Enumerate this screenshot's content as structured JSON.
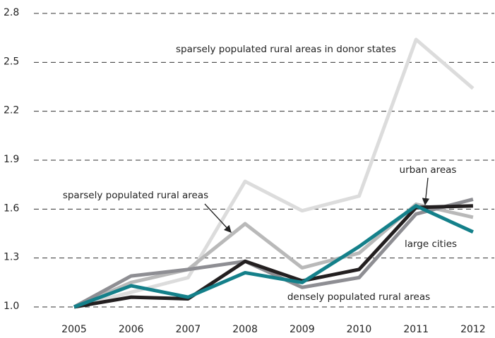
{
  "chart_data": {
    "type": "line",
    "categories": [
      "2005",
      "2006",
      "2007",
      "2008",
      "2009",
      "2010",
      "2011",
      "2012"
    ],
    "series": [
      {
        "name": "sparsely populated rural areas in donor states",
        "color": "#dcdcdc",
        "values": [
          1.0,
          1.09,
          1.18,
          1.77,
          1.59,
          1.68,
          2.64,
          2.34
        ]
      },
      {
        "name": "sparsely populated rural areas",
        "color": "#b9b9b9",
        "values": [
          1.0,
          1.15,
          1.23,
          1.51,
          1.24,
          1.33,
          1.63,
          1.55
        ]
      },
      {
        "name": "densely populated rural areas",
        "color": "#8e8e93",
        "values": [
          1.0,
          1.19,
          1.23,
          1.28,
          1.12,
          1.18,
          1.57,
          1.66
        ]
      },
      {
        "name": "urban areas",
        "color": "#231f20",
        "values": [
          1.0,
          1.06,
          1.05,
          1.28,
          1.16,
          1.23,
          1.61,
          1.62
        ]
      },
      {
        "name": "large cities",
        "color": "#14808a",
        "values": [
          1.0,
          1.13,
          1.06,
          1.21,
          1.15,
          1.37,
          1.62,
          1.46
        ]
      }
    ],
    "ylim": [
      1.0,
      2.8
    ],
    "yticks": [
      {
        "value": 1.0,
        "label": "1.0"
      },
      1.3,
      1.6,
      1.9,
      2.2,
      2.5,
      2.8
    ],
    "grid": true
  }
}
